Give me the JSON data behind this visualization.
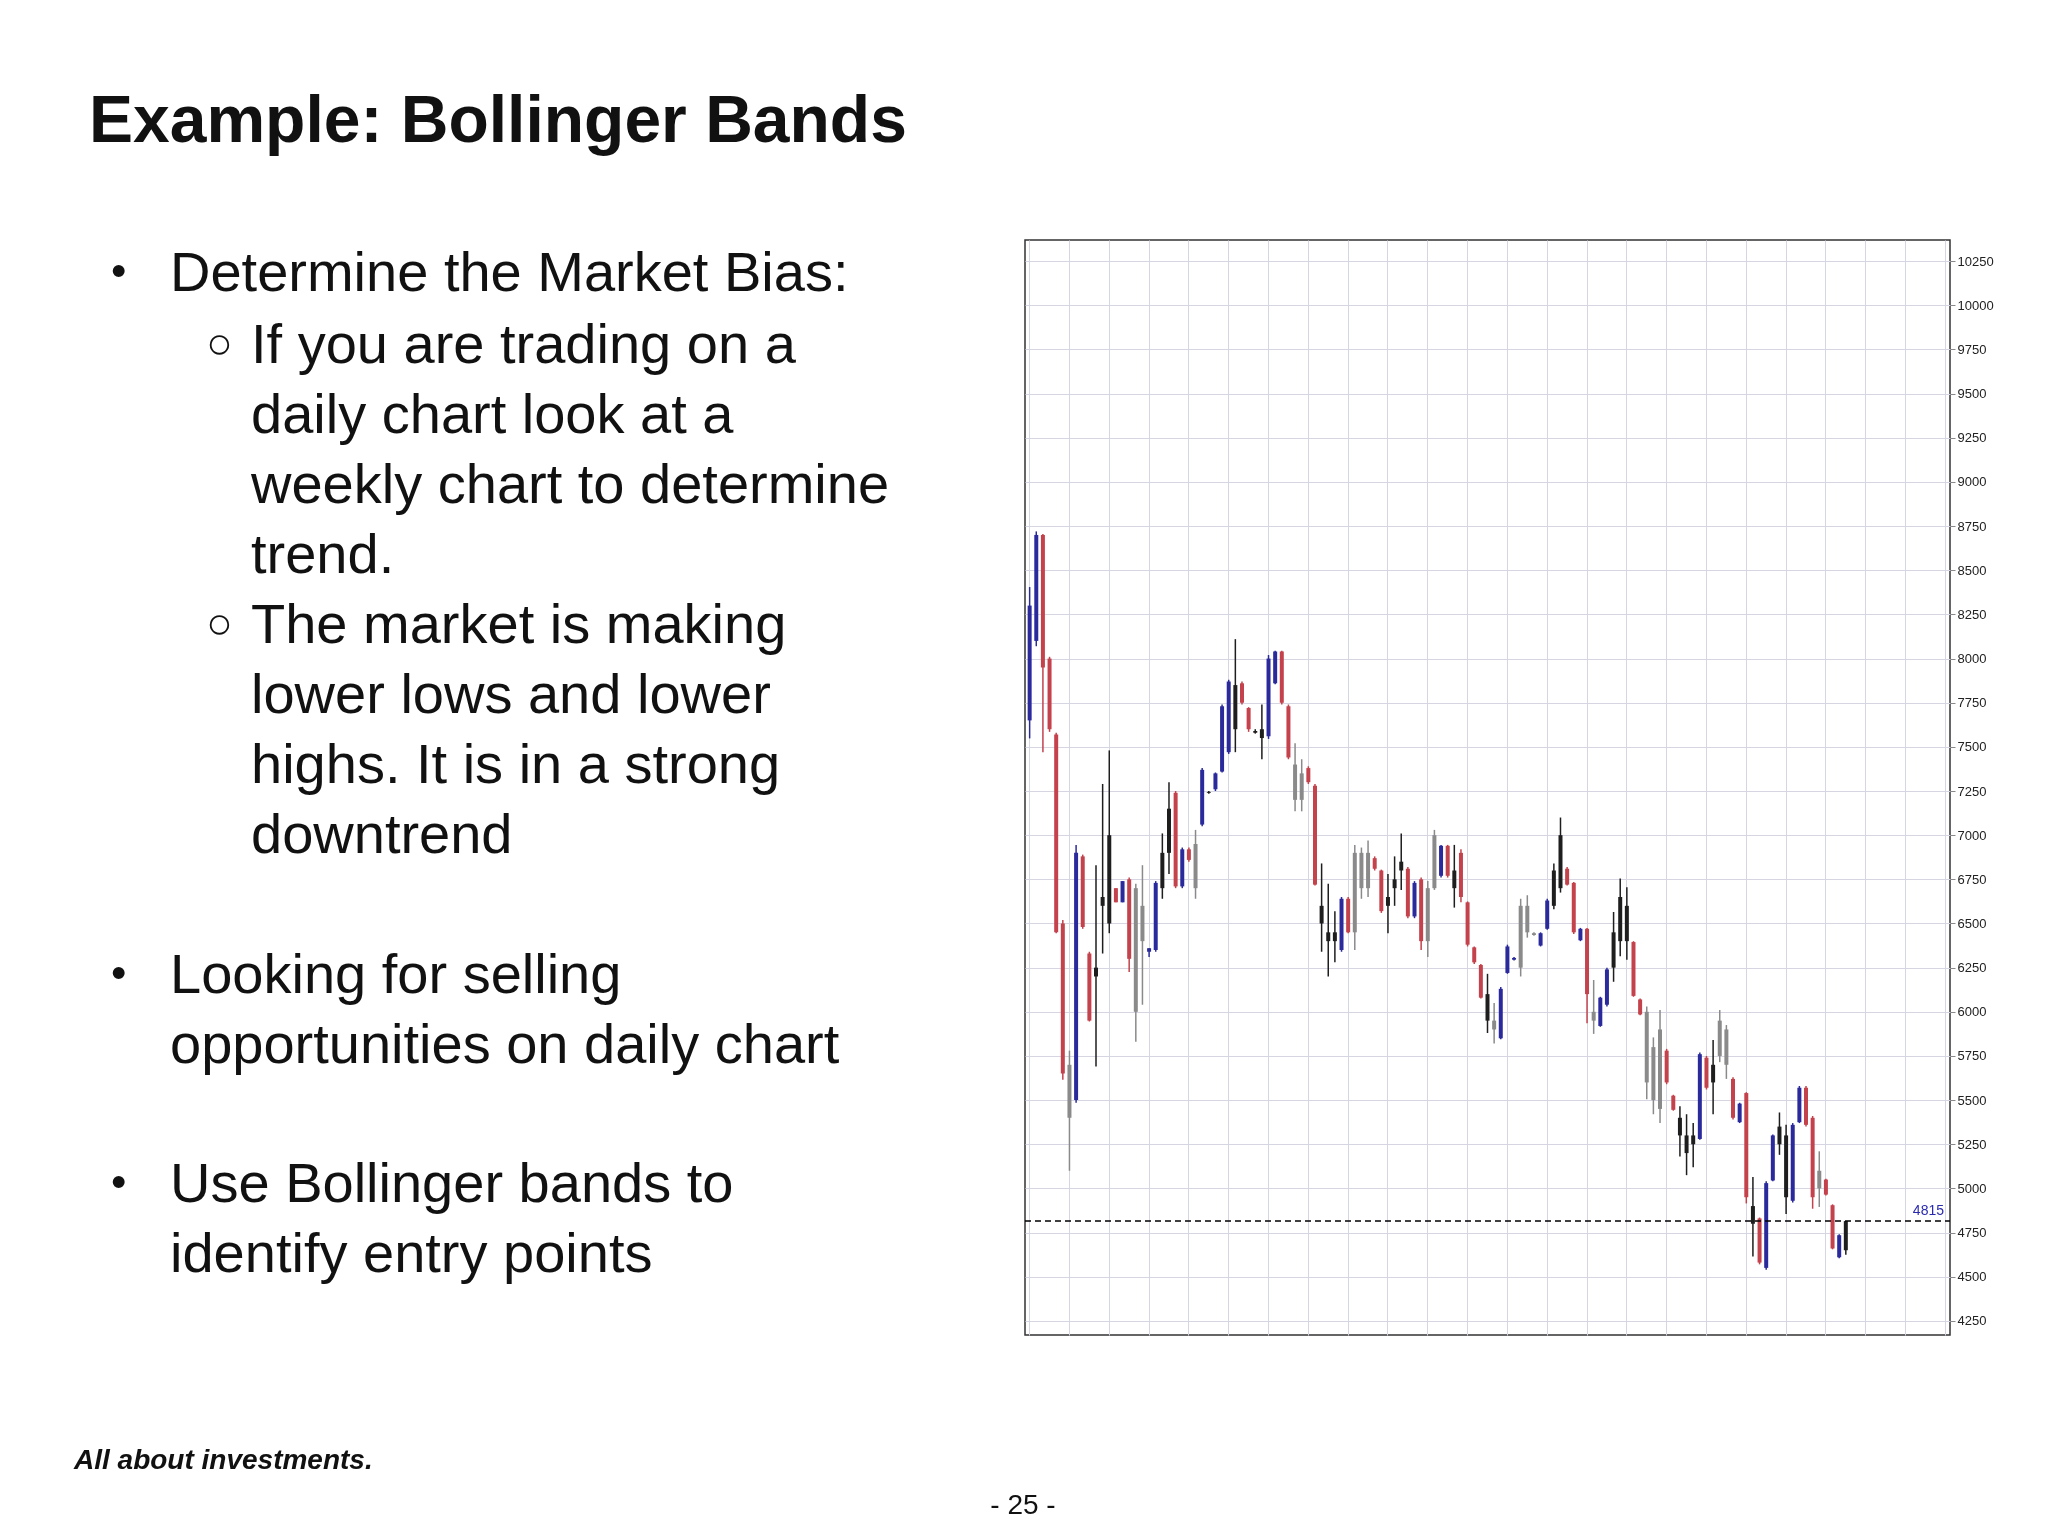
{
  "chart_data": {
    "type": "candlestick",
    "title": "Example: Bollinger Bands",
    "categories": [
      null,
      null,
      null,
      null,
      null,
      null,
      null,
      null,
      null,
      null,
      null,
      null,
      null,
      null,
      null,
      null,
      null,
      null,
      null,
      null,
      null,
      null,
      null,
      null,
      null,
      null,
      null,
      null,
      null,
      null,
      null,
      null,
      null,
      null,
      null,
      null,
      null,
      null,
      null,
      null,
      null,
      null,
      null,
      null,
      null,
      null,
      null,
      null,
      null,
      null,
      null,
      null,
      null,
      null,
      null,
      null,
      null,
      null,
      null,
      null,
      null,
      null,
      null,
      null,
      null,
      null,
      null,
      null,
      null,
      null,
      null,
      null,
      null,
      null,
      null,
      null,
      null,
      null,
      null,
      null,
      null,
      null,
      null,
      null,
      null,
      null,
      null,
      null,
      null,
      null,
      null,
      null,
      null,
      null,
      null,
      null,
      null,
      null,
      null,
      null,
      null,
      null,
      null,
      null,
      null,
      null,
      null,
      null,
      null,
      null,
      null,
      null,
      null,
      null,
      null,
      null,
      null,
      null,
      null,
      null,
      null,
      null,
      null,
      null,
      null,
      null,
      null,
      null,
      null,
      null,
      null,
      null,
      null,
      null,
      null,
      null,
      null,
      null,
      null
    ],
    "ohlc": [
      [
        7650,
        8405,
        7548,
        8300
      ],
      [
        8100,
        8720,
        8070,
        8700
      ],
      [
        8700,
        8705,
        7470,
        7950
      ],
      [
        8000,
        8010,
        7585,
        7600
      ],
      [
        7570,
        7580,
        6445,
        6450
      ],
      [
        6500,
        6520,
        5615,
        5650
      ],
      [
        5700,
        5780,
        5100,
        5400
      ],
      [
        5500,
        6945,
        5485,
        6900
      ],
      [
        6880,
        6890,
        6470,
        6480
      ],
      [
        6330,
        6340,
        5945,
        5950
      ],
      [
        6200,
        6830,
        5690,
        6250
      ],
      [
        6600,
        7290,
        6330,
        6650
      ],
      [
        7000,
        7480,
        6445,
        6500
      ],
      [
        6700,
        6700,
        6620,
        6620
      ],
      [
        6620,
        6740,
        6620,
        6740
      ],
      [
        6750,
        6760,
        6225,
        6300
      ],
      [
        6700,
        6725,
        5830,
        6000
      ],
      [
        6400,
        6830,
        6040,
        6600
      ],
      [
        6340,
        6360,
        6310,
        6360
      ],
      [
        6350,
        6740,
        6340,
        6730
      ],
      [
        6700,
        7010,
        6640,
        6900
      ],
      [
        6900,
        7300,
        6780,
        7150
      ],
      [
        7240,
        7250,
        6700,
        6710
      ],
      [
        6710,
        6930,
        6700,
        6920
      ],
      [
        6920,
        6930,
        6850,
        6860
      ],
      [
        6700,
        7030,
        6640,
        6950
      ],
      [
        7060,
        7380,
        7050,
        7370
      ],
      [
        7240,
        7250,
        7235,
        7245
      ],
      [
        7260,
        7355,
        7250,
        7350
      ],
      [
        7360,
        7740,
        7355,
        7730
      ],
      [
        7470,
        7880,
        7460,
        7870
      ],
      [
        7600,
        8110,
        7470,
        7850
      ],
      [
        7860,
        7870,
        7740,
        7750
      ],
      [
        7720,
        7725,
        7585,
        7600
      ],
      [
        7590,
        7600,
        7575,
        7580
      ],
      [
        7550,
        7740,
        7430,
        7600
      ],
      [
        7560,
        8020,
        7545,
        8000
      ],
      [
        7860,
        8045,
        7855,
        8040
      ],
      [
        8040,
        8045,
        7740,
        7750
      ],
      [
        7730,
        7740,
        7430,
        7440
      ],
      [
        7400,
        7520,
        7135,
        7200
      ],
      [
        7350,
        7430,
        7135,
        7200
      ],
      [
        7380,
        7390,
        7290,
        7300
      ],
      [
        7280,
        7290,
        6715,
        6720
      ],
      [
        6600,
        6840,
        6340,
        6500
      ],
      [
        6400,
        6725,
        6200,
        6450
      ],
      [
        6400,
        6570,
        6280,
        6450
      ],
      [
        6350,
        6650,
        6340,
        6640
      ],
      [
        6640,
        6650,
        6445,
        6450
      ],
      [
        6450,
        6945,
        6350,
        6900
      ],
      [
        6900,
        6930,
        6640,
        6700
      ],
      [
        6700,
        6970,
        6650,
        6900
      ],
      [
        6870,
        6880,
        6800,
        6810
      ],
      [
        6800,
        6805,
        6560,
        6570
      ],
      [
        6600,
        6780,
        6445,
        6650
      ],
      [
        6700,
        6880,
        6600,
        6750
      ],
      [
        6800,
        7010,
        6690,
        6850
      ],
      [
        6810,
        6820,
        6530,
        6540
      ],
      [
        6540,
        6740,
        6530,
        6730
      ],
      [
        6750,
        6760,
        6350,
        6400
      ],
      [
        6700,
        6740,
        6310,
        6400
      ],
      [
        6700,
        7030,
        6690,
        7000
      ],
      [
        6770,
        6945,
        6760,
        6940
      ],
      [
        6940,
        6945,
        6760,
        6770
      ],
      [
        6800,
        6945,
        6590,
        6700
      ],
      [
        6900,
        6920,
        6620,
        6650
      ],
      [
        6620,
        6625,
        6370,
        6380
      ],
      [
        6365,
        6370,
        6270,
        6280
      ],
      [
        6265,
        6270,
        6075,
        6080
      ],
      [
        6100,
        6215,
        5880,
        5950
      ],
      [
        5950,
        6050,
        5820,
        5900
      ],
      [
        5850,
        6140,
        5845,
        6130
      ],
      [
        6220,
        6380,
        6215,
        6370
      ],
      [
        6295,
        6310,
        6290,
        6305
      ],
      [
        6250,
        6640,
        6200,
        6600
      ],
      [
        6600,
        6660,
        6420,
        6450
      ],
      [
        6445,
        6450,
        6430,
        6435
      ],
      [
        6375,
        6450,
        6370,
        6445
      ],
      [
        6470,
        6640,
        6465,
        6630
      ],
      [
        6600,
        6840,
        6580,
        6800
      ],
      [
        6700,
        7100,
        6675,
        7000
      ],
      [
        6810,
        6820,
        6715,
        6720
      ],
      [
        6730,
        6735,
        6440,
        6450
      ],
      [
        6405,
        6475,
        6400,
        6470
      ],
      [
        6470,
        6475,
        5935,
        6100
      ],
      [
        6000,
        6180,
        5875,
        5950
      ],
      [
        5920,
        6085,
        5915,
        6080
      ],
      [
        6040,
        6250,
        6030,
        6240
      ],
      [
        6250,
        6565,
        6170,
        6450
      ],
      [
        6400,
        6755,
        6315,
        6650
      ],
      [
        6600,
        6705,
        6295,
        6400
      ],
      [
        6395,
        6400,
        6085,
        6090
      ],
      [
        6070,
        6075,
        5980,
        5985
      ],
      [
        6000,
        6030,
        5505,
        5600
      ],
      [
        5800,
        5855,
        5420,
        5500
      ],
      [
        5900,
        6010,
        5370,
        5450
      ],
      [
        5780,
        5790,
        5590,
        5600
      ],
      [
        5525,
        5530,
        5440,
        5445
      ],
      [
        5400,
        5465,
        5180,
        5300
      ],
      [
        5300,
        5420,
        5075,
        5200
      ],
      [
        5250,
        5370,
        5120,
        5300
      ],
      [
        5280,
        5770,
        5275,
        5760
      ],
      [
        5740,
        5750,
        5560,
        5570
      ],
      [
        5600,
        5840,
        5420,
        5700
      ],
      [
        5750,
        6010,
        5715,
        5950
      ],
      [
        5900,
        5925,
        5620,
        5700
      ],
      [
        5620,
        5630,
        5390,
        5400
      ],
      [
        5375,
        5485,
        5370,
        5480
      ],
      [
        5540,
        5545,
        4915,
        4950
      ],
      [
        4900,
        5065,
        4615,
        4800
      ],
      [
        4830,
        4835,
        4570,
        4580
      ],
      [
        4550,
        5040,
        4540,
        5030
      ],
      [
        5045,
        5305,
        5040,
        5300
      ],
      [
        5250,
        5430,
        5190,
        5350
      ],
      [
        5300,
        5360,
        4855,
        4950
      ],
      [
        4930,
        5370,
        4920,
        5360
      ],
      [
        5375,
        5580,
        5370,
        5570
      ],
      [
        5570,
        5580,
        5350,
        5360
      ],
      [
        5400,
        5410,
        4885,
        4950
      ],
      [
        5000,
        5210,
        4895,
        5100
      ],
      [
        5050,
        5055,
        4960,
        4965
      ],
      [
        4905,
        4910,
        4655,
        4660
      ],
      [
        4610,
        4740,
        4605,
        4735
      ],
      [
        4650,
        4815,
        4625,
        4815
      ],
      null,
      null,
      null,
      null,
      null,
      null,
      null,
      null,
      null,
      null,
      null,
      null,
      null,
      null,
      null
    ],
    "colors": [
      "#2a2a9c",
      "#2a2a9c",
      "#c4424c",
      "#c4424c",
      "#c4424c",
      "#c4424c",
      "#8a8a8a",
      "#2a2a9c",
      "#c4424c",
      "#c4424c",
      "#1e1e1e",
      "#1e1e1e",
      "#1e1e1e",
      "#c4424c",
      "#2a2a9c",
      "#c4424c",
      "#8a8a8a",
      "#8a8a8a",
      "#2a2a9c",
      "#2a2a9c",
      "#1e1e1e",
      "#1e1e1e",
      "#c4424c",
      "#2a2a9c",
      "#c4424c",
      "#8a8a8a",
      "#2a2a9c",
      "#1e1e1e",
      "#2a2a9c",
      "#2a2a9c",
      "#2a2a9c",
      "#1e1e1e",
      "#c4424c",
      "#c4424c",
      "#1e1e1e",
      "#1e1e1e",
      "#2a2a9c",
      "#2a2a9c",
      "#c4424c",
      "#c4424c",
      "#8a8a8a",
      "#8a8a8a",
      "#c4424c",
      "#c4424c",
      "#1e1e1e",
      "#1e1e1e",
      "#1e1e1e",
      "#2a2a9c",
      "#c4424c",
      "#8a8a8a",
      "#8a8a8a",
      "#8a8a8a",
      "#c4424c",
      "#c4424c",
      "#1e1e1e",
      "#1e1e1e",
      "#1e1e1e",
      "#c4424c",
      "#2a2a9c",
      "#c4424c",
      "#8a8a8a",
      "#8a8a8a",
      "#2a2a9c",
      "#c4424c",
      "#1e1e1e",
      "#c4424c",
      "#c4424c",
      "#c4424c",
      "#c4424c",
      "#1e1e1e",
      "#8a8a8a",
      "#2a2a9c",
      "#2a2a9c",
      "#2a2a9c",
      "#8a8a8a",
      "#8a8a8a",
      "#8a8a8a",
      "#2a2a9c",
      "#2a2a9c",
      "#1e1e1e",
      "#1e1e1e",
      "#c4424c",
      "#c4424c",
      "#2a2a9c",
      "#c4424c",
      "#8a8a8a",
      "#2a2a9c",
      "#2a2a9c",
      "#1e1e1e",
      "#1e1e1e",
      "#1e1e1e",
      "#c4424c",
      "#c4424c",
      "#8a8a8a",
      "#8a8a8a",
      "#8a8a8a",
      "#c4424c",
      "#c4424c",
      "#1e1e1e",
      "#1e1e1e",
      "#1e1e1e",
      "#2a2a9c",
      "#c4424c",
      "#1e1e1e",
      "#8a8a8a",
      "#8a8a8a",
      "#c4424c",
      "#2a2a9c",
      "#c4424c",
      "#1e1e1e",
      "#c4424c",
      "#2a2a9c",
      "#2a2a9c",
      "#1e1e1e",
      "#1e1e1e",
      "#2a2a9c",
      "#2a2a9c",
      "#c4424c",
      "#c4424c",
      "#8a8a8a",
      "#c4424c",
      "#c4424c",
      "#2a2a9c",
      "#1e1e1e",
      null,
      null,
      null,
      null,
      null,
      null,
      null,
      null,
      null,
      null,
      null,
      null,
      null,
      null,
      null
    ],
    "ylim": [
      4170,
      10370
    ],
    "yticks": [
      4250,
      4500,
      4750,
      5000,
      5250,
      5500,
      5750,
      6000,
      6250,
      6500,
      6750,
      7000,
      7250,
      7500,
      7750,
      8000,
      8250,
      8500,
      8750,
      9000,
      9250,
      9500,
      9750,
      10000,
      10250
    ],
    "ref_lines": [
      {
        "axis": "y",
        "value": 4815,
        "label": "4815",
        "line_style": "dashed",
        "color": "#000000"
      }
    ],
    "grid": true,
    "tick_labels": "y",
    "annotations": [
      "• Determine the Market Bias:",
      "○ If you are trading on a daily chart look at a weekly chart to determine trend.",
      "○ The market is making lower lows and lower highs. It is in a strong downtrend",
      "• Looking for selling opportunities on daily chart",
      "• Use Bollinger bands to identify entry points",
      "All about investments.",
      "- 25 -"
    ]
  }
}
